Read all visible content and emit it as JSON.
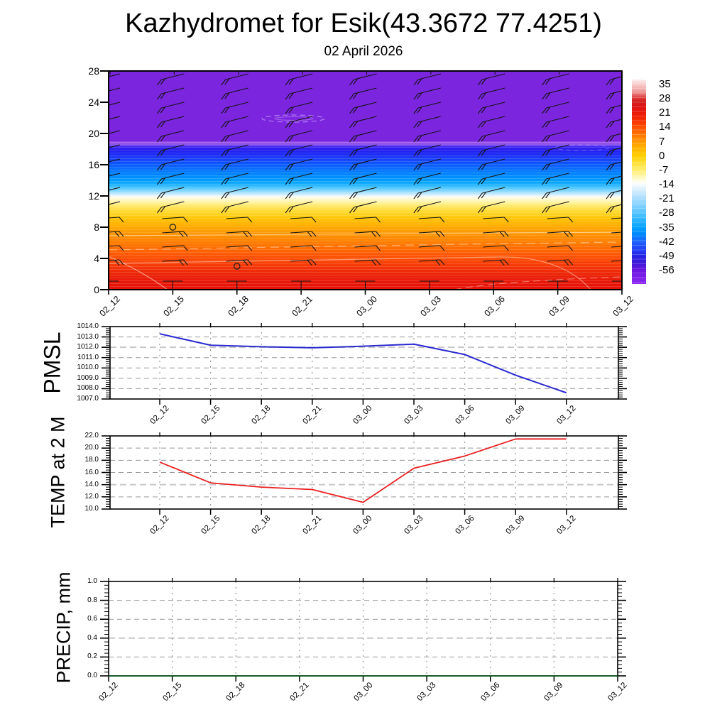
{
  "header": {
    "title": "Kazhydromet for Esik(43.3672 77.4251)",
    "date": "02 April 2026"
  },
  "time_labels": [
    "02_12",
    "02_15",
    "02_18",
    "02_21",
    "03_00",
    "03_03",
    "03_06",
    "03_09",
    "03_12"
  ],
  "profile": {
    "y_tick_labels": [
      "28",
      "24",
      "20",
      "16",
      "12",
      "8",
      "4",
      "0"
    ],
    "markers": [
      {
        "time_index": 1,
        "level": 8
      },
      {
        "time_index": 2,
        "level": 3
      }
    ]
  },
  "colorbar": {
    "tick_labels": [
      "35",
      "28",
      "21",
      "14",
      "7",
      "0",
      "-7",
      "-14",
      "-21",
      "-28",
      "-35",
      "-42",
      "-49",
      "-56"
    ]
  },
  "pmsl": {
    "title": "PMSL",
    "y_tick_labels": [
      "1014.0",
      "1013.0",
      "1012.0",
      "1011.0",
      "1010.0",
      "1009.0",
      "1008.0",
      "1007.0"
    ],
    "values": [
      1013.3,
      1012.2,
      1012.05,
      1011.95,
      1012.1,
      1012.3,
      1011.3,
      1009.3,
      1007.6
    ]
  },
  "temp": {
    "title": "TEMP at 2 M",
    "y_tick_labels": [
      "22.0",
      "20.0",
      "18.0",
      "16.0",
      "14.0",
      "12.0",
      "10.0"
    ],
    "values": [
      17.7,
      14.3,
      13.6,
      13.2,
      11.1,
      16.7,
      18.7,
      21.5,
      21.5
    ]
  },
  "precip": {
    "title": "PRECIP, mm",
    "y_tick_labels": [
      "1.0",
      "0.8",
      "0.6",
      "0.4",
      "0.2",
      "0.0"
    ],
    "values": [
      0,
      0,
      0,
      0,
      0,
      0,
      0,
      0,
      0
    ]
  },
  "chart_data": [
    {
      "type": "heatmap",
      "title": "Kazhydromet for Esik(43.3672 77.4251)",
      "subtitle": "02 April 2026",
      "x": [
        "02_12",
        "02_15",
        "02_18",
        "02_21",
        "03_00",
        "03_03",
        "03_06",
        "03_09",
        "03_12"
      ],
      "ylim": [
        0,
        28
      ],
      "y_ticks": [
        0,
        4,
        8,
        12,
        16,
        20,
        24,
        28
      ],
      "legend_position": "right",
      "colorbar_ticks": [
        35,
        28,
        21,
        14,
        7,
        0,
        -7,
        -14,
        -21,
        -28,
        -35,
        -42,
        -49,
        -56
      ],
      "description": "time-height temperature shading with wind barbs; warm red near level 0 grading through orange, yellow at ~11, white at ~12, cyan-blue 13-17, dark blue 17-18.5, purple above 19",
      "station_markers": [
        {
          "x": "02_15",
          "y": 8
        },
        {
          "x": "02_18",
          "y": 3
        }
      ]
    },
    {
      "type": "line",
      "name": "PMSL",
      "x": [
        "02_12",
        "02_15",
        "02_18",
        "02_21",
        "03_00",
        "03_03",
        "03_06",
        "03_09",
        "03_12"
      ],
      "values": [
        1013.3,
        1012.2,
        1012.05,
        1011.95,
        1012.1,
        1012.3,
        1011.3,
        1009.3,
        1007.6
      ],
      "ylim": [
        1007.0,
        1014.0
      ],
      "grid": true,
      "color": "#2a2ad0"
    },
    {
      "type": "line",
      "name": "TEMP at 2 M",
      "x": [
        "02_12",
        "02_15",
        "02_18",
        "02_21",
        "03_00",
        "03_03",
        "03_06",
        "03_09",
        "03_12"
      ],
      "values": [
        17.7,
        14.3,
        13.6,
        13.2,
        11.1,
        16.7,
        18.7,
        21.5,
        21.5
      ],
      "ylim": [
        10.0,
        22.0
      ],
      "grid": true,
      "color": "#e82020"
    },
    {
      "type": "line",
      "name": "PRECIP, mm",
      "x": [
        "02_12",
        "02_15",
        "02_18",
        "02_21",
        "03_00",
        "03_03",
        "03_06",
        "03_09",
        "03_12"
      ],
      "values": [
        0,
        0,
        0,
        0,
        0,
        0,
        0,
        0,
        0
      ],
      "ylim": [
        0.0,
        1.0
      ],
      "grid": true,
      "color": "#0b5e22"
    }
  ]
}
